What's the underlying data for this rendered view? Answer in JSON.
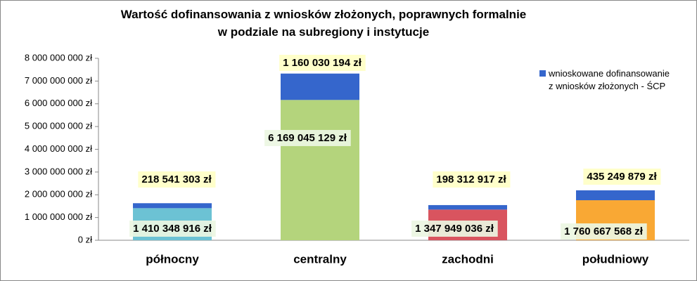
{
  "chart_data": {
    "type": "stacked_bar",
    "title": "Wartość dofinansowania z wniosków złożonych, poprawnych formalnie\nw podziale na subregiony i instytucje",
    "categories": [
      "północny",
      "centralny",
      "zachodni",
      "południowy"
    ],
    "series": [
      {
        "colors": [
          "#6cc2d4",
          "#b4d47c",
          "#d9545f",
          "#f9a834"
        ],
        "values": [
          1410348916,
          6169045129,
          1347949036,
          1760667568
        ],
        "value_labels": [
          "1 410 348 916 zł",
          "6 169 045 129 zł",
          "1 347 949 036 zł",
          "1 760 667 568 zł"
        ]
      },
      {
        "name": "wnioskowane dofinansowanie\nz wniosków złożonych  - ŚCP",
        "color": "#3566cc",
        "values": [
          218541303,
          1160030194,
          198312917,
          435249879
        ],
        "value_labels": [
          "218 541 303 zł",
          "1 160 030 194 zł",
          "198 312 917 zł",
          "435 249 879 zł"
        ]
      }
    ],
    "ylim": [
      0,
      8000000000
    ],
    "yticks": [
      {
        "value": 0,
        "label": "0 zł"
      },
      {
        "value": 1000000000,
        "label": "1 000 000 000 zł"
      },
      {
        "value": 2000000000,
        "label": "2 000 000 000 zł"
      },
      {
        "value": 3000000000,
        "label": "3 000 000 000 zł"
      },
      {
        "value": 4000000000,
        "label": "4 000 000 000 zł"
      },
      {
        "value": 5000000000,
        "label": "5 000 000 000 zł"
      },
      {
        "value": 6000000000,
        "label": "6 000 000 000 zł"
      },
      {
        "value": 7000000000,
        "label": "7 000 000 000 zł"
      },
      {
        "value": 8000000000,
        "label": "8 000 000 000 zł"
      }
    ],
    "grid": false,
    "legend": "top-right"
  }
}
